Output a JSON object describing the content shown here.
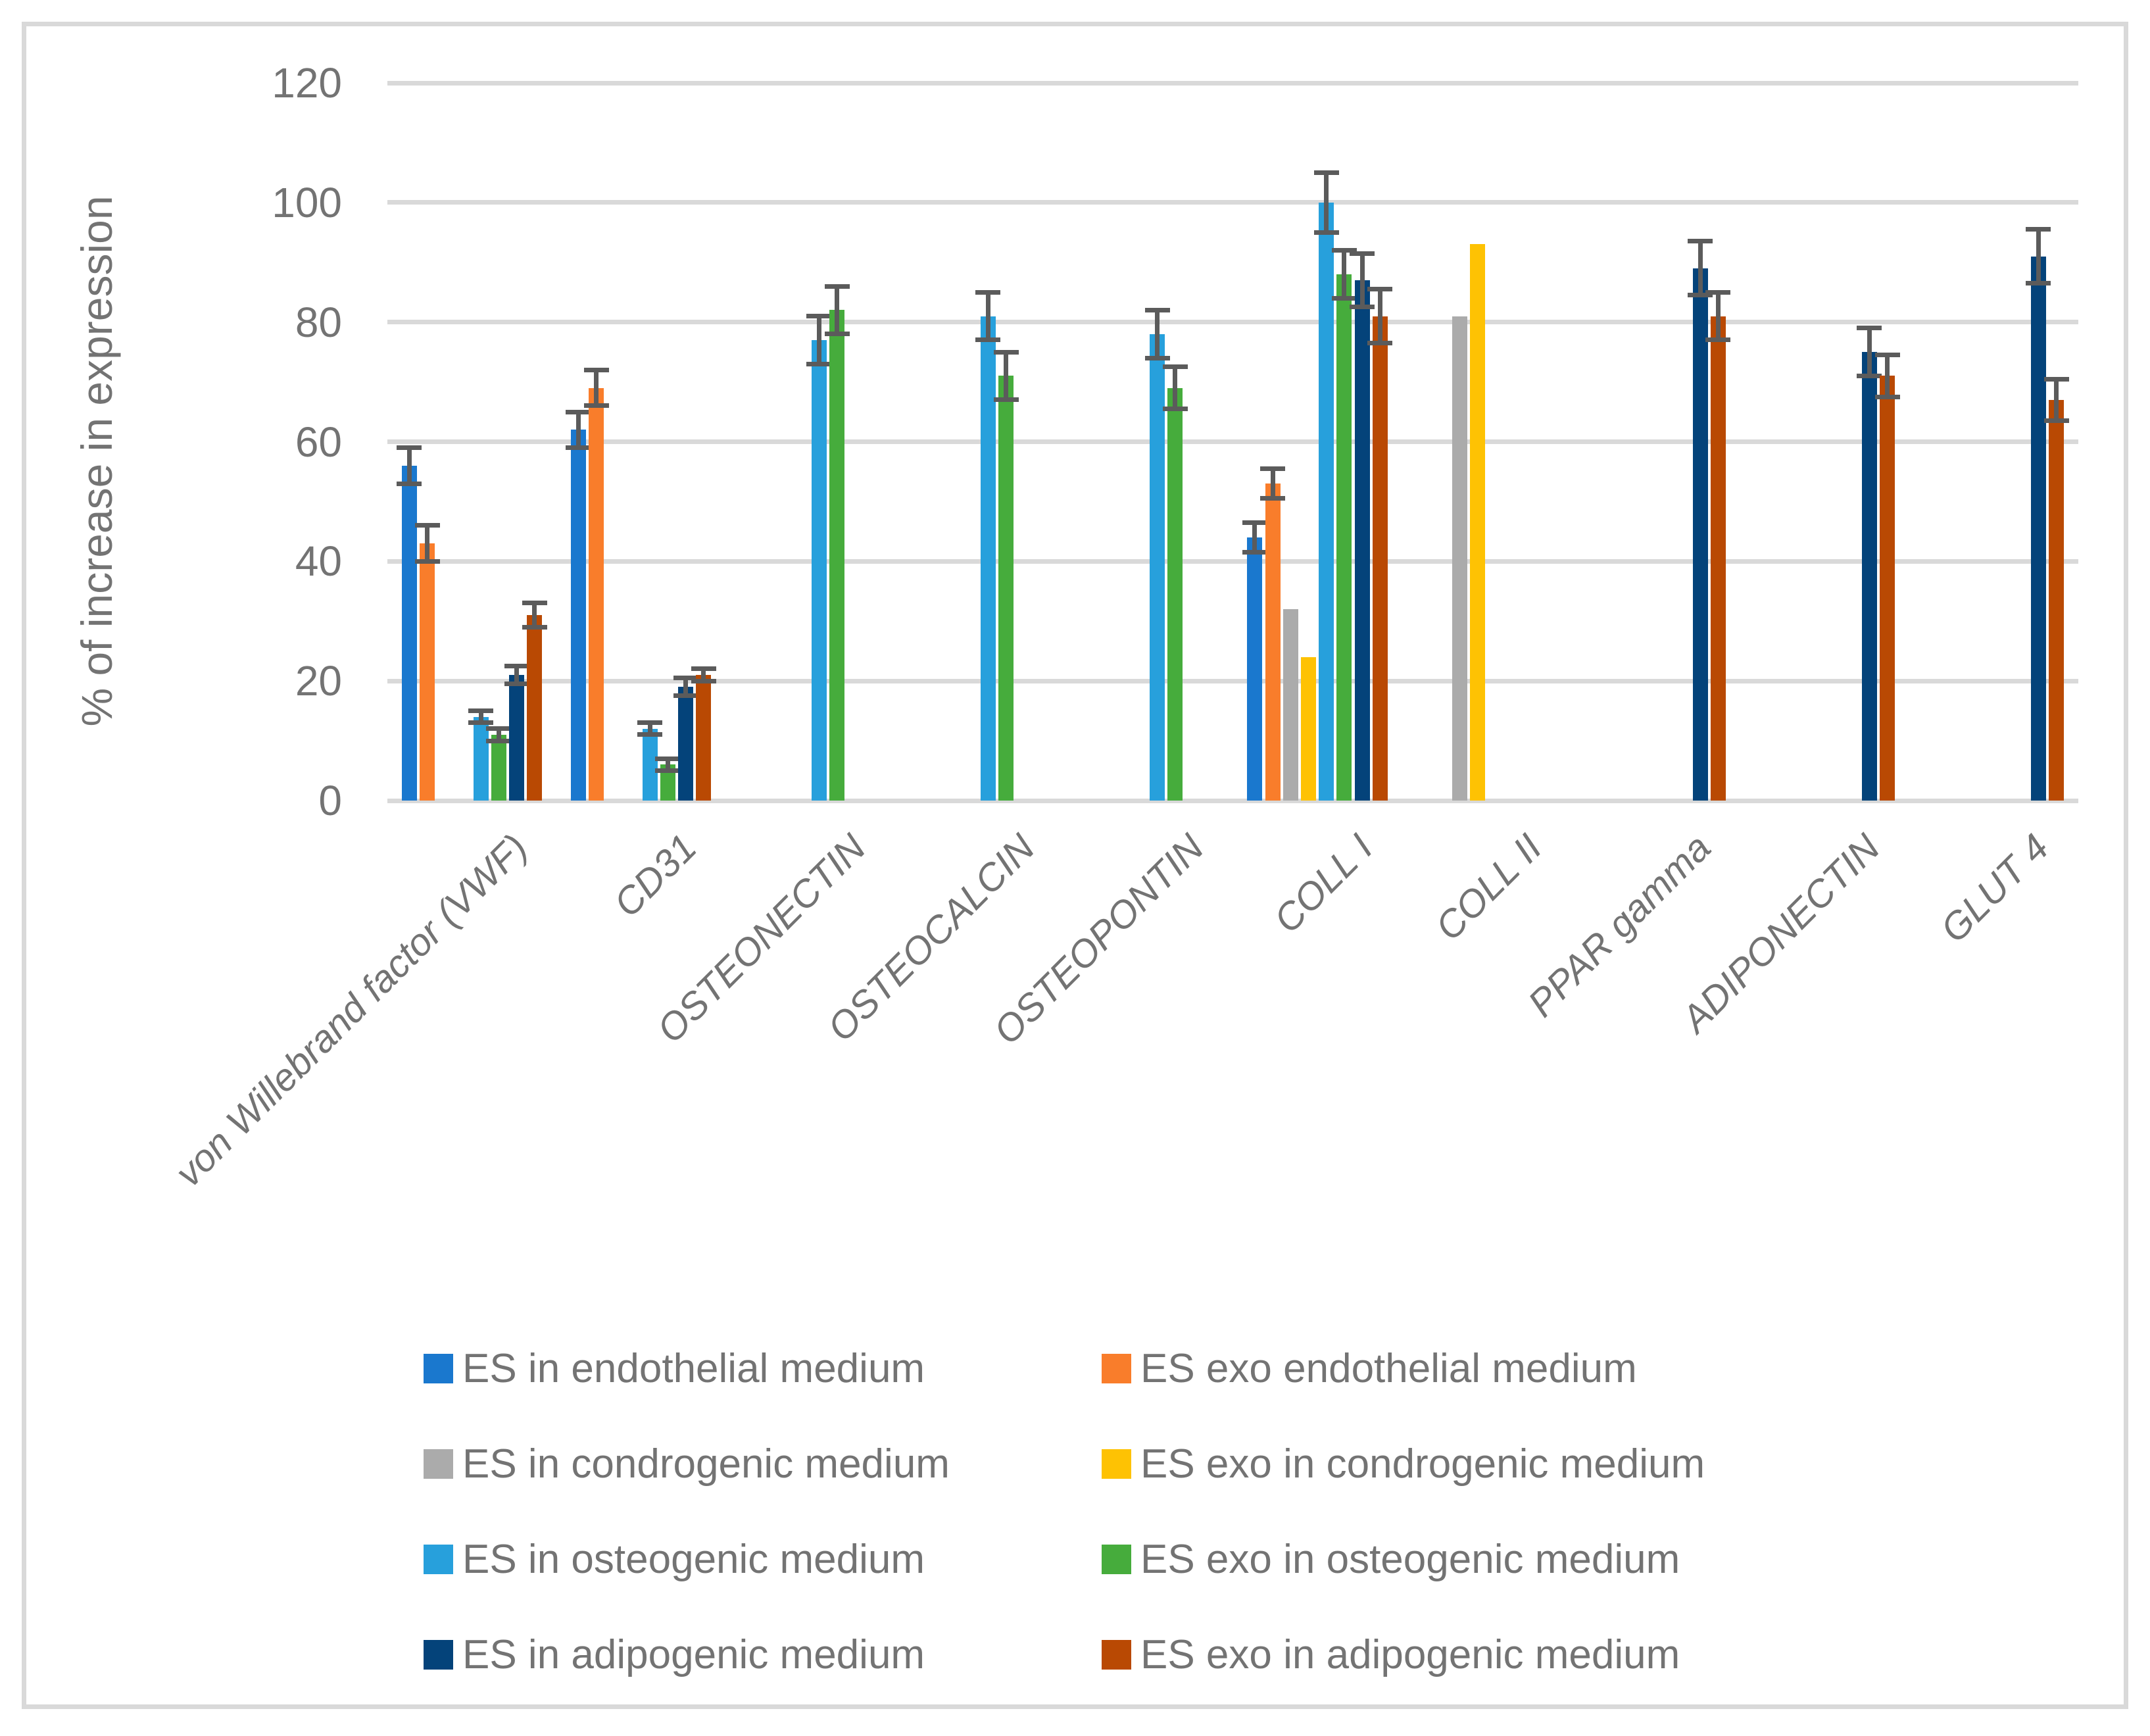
{
  "chart_data": {
    "type": "bar",
    "title": "",
    "ylabel": "% of increase in expression",
    "xlabel": "",
    "ylim": [
      0,
      120
    ],
    "yticks": [
      0,
      20,
      40,
      60,
      80,
      100,
      120
    ],
    "grid": true,
    "legend_position": "bottom",
    "error_bars": true,
    "categories": [
      "von Willebrand factor (VWF)",
      "CD31",
      "OSTEONECTIN",
      "OSTEOCALCIN",
      "OSTEOPONTIN",
      "COLL I",
      "COLL II",
      "PPAR gamma",
      "ADIPONECTIN",
      "GLUT 4"
    ],
    "series": [
      {
        "name": "ES in endothelial medium",
        "color": "#1A78CE",
        "values": [
          56,
          62,
          0,
          0,
          0,
          44,
          0,
          0,
          0,
          0
        ],
        "errors": [
          3,
          3,
          0,
          0,
          0,
          2.5,
          0,
          0,
          0,
          0
        ]
      },
      {
        "name": "ES exo endothelial medium",
        "color": "#F97D2B",
        "values": [
          43,
          69,
          0,
          0,
          0,
          53,
          0,
          0,
          0,
          0
        ],
        "errors": [
          3,
          3,
          0,
          0,
          0,
          2.5,
          0,
          0,
          0,
          0
        ]
      },
      {
        "name": "ES in condrogenic medium",
        "color": "#ABABAB",
        "values": [
          0,
          0,
          0,
          0,
          0,
          32,
          81,
          0,
          0,
          0
        ],
        "errors": [
          0,
          0,
          0,
          0,
          0,
          0,
          0,
          0,
          0,
          0
        ]
      },
      {
        "name": "ES exo in condrogenic medium",
        "color": "#FEC203",
        "values": [
          0,
          0,
          0,
          0,
          0,
          24,
          93,
          0,
          0,
          0
        ],
        "errors": [
          0,
          0,
          0,
          0,
          0,
          0,
          0,
          0,
          0,
          0
        ]
      },
      {
        "name": "ES in osteogenic medium",
        "color": "#27A0DC",
        "values": [
          14,
          12,
          77,
          81,
          78,
          100,
          0,
          0,
          0,
          0
        ],
        "errors": [
          1,
          1,
          4,
          4,
          4,
          5,
          0,
          0,
          0,
          0
        ]
      },
      {
        "name": "ES exo in osteogenic medium",
        "color": "#46AC3C",
        "values": [
          11,
          6,
          82,
          71,
          69,
          88,
          0,
          0,
          0,
          0
        ],
        "errors": [
          1,
          1,
          4,
          4,
          3.5,
          4,
          0,
          0,
          0,
          0
        ]
      },
      {
        "name": "ES in adipogenic medium",
        "color": "#04437A",
        "values": [
          21,
          19,
          0,
          0,
          0,
          87,
          0,
          89,
          75,
          91
        ],
        "errors": [
          1.5,
          1.5,
          0,
          0,
          0,
          4.5,
          0,
          4.5,
          4,
          4.5
        ]
      },
      {
        "name": "ES exo in adipogenic medium",
        "color": "#B94903",
        "values": [
          31,
          21,
          0,
          0,
          0,
          81,
          0,
          81,
          71,
          67
        ],
        "errors": [
          2,
          1,
          0,
          0,
          0,
          4.5,
          0,
          4,
          3.5,
          3.5
        ]
      }
    ]
  }
}
